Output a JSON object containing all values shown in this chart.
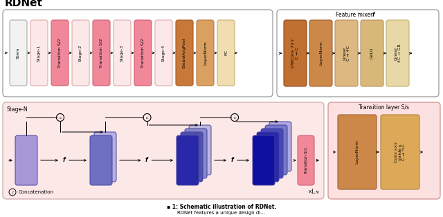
{
  "title": "RDNet",
  "bg_color": "#ffffff",
  "top_blocks": [
    {
      "label": "Stem",
      "color": "#f2f2f2",
      "border": "#aaaaaa"
    },
    {
      "label": "Stage-1",
      "color": "#fce8e8",
      "border": "#ddaaaa"
    },
    {
      "label": "Transition S/2",
      "color": "#f0889a",
      "border": "#d06070"
    },
    {
      "label": "Stage-2",
      "color": "#fce8e8",
      "border": "#ddaaaa"
    },
    {
      "label": "Transition S/2",
      "color": "#f0889a",
      "border": "#d06070"
    },
    {
      "label": "Stage-3",
      "color": "#fce8e8",
      "border": "#ddaaaa"
    },
    {
      "label": "Transition S/2",
      "color": "#f0889a",
      "border": "#d06070"
    },
    {
      "label": "Stage-4",
      "color": "#fce8e8",
      "border": "#ddaaaa"
    },
    {
      "label": "GlobalAvgPool",
      "color": "#c87838",
      "border": "#a05820"
    },
    {
      "label": "LayerNorm",
      "color": "#daa060",
      "border": "#b87840"
    },
    {
      "label": "FC",
      "color": "#f0ddb0",
      "border": "#c8b070"
    }
  ],
  "feature_mixer_blocks": [
    {
      "label": "DWConv 7×7\nC → C",
      "color": "#c07030",
      "border": "#904820"
    },
    {
      "label": "LayerNorm",
      "color": "#cc8848",
      "border": "#a06030"
    },
    {
      "label": "Linear\nC → 4C",
      "color": "#ddb880",
      "border": "#b89060"
    },
    {
      "label": "GeLU",
      "color": "#d8b878",
      "border": "#b89060"
    },
    {
      "label": "Linear\n4C → GR",
      "color": "#e8d8a8",
      "border": "#c0b070"
    }
  ],
  "transition_layer_blocks": [
    {
      "label": "LayerNorm",
      "color": "#cc8848",
      "border": "#a06030"
    },
    {
      "label": "Conv s×s\nstride s\nC → ½C",
      "color": "#dda858",
      "border": "#b08030"
    }
  ],
  "stage_n_label": "Stage-N",
  "feature_mixer_label": "Feature mixer ",
  "feature_mixer_f": "f",
  "transition_layer_label": "Transition layer S/s",
  "concat_label": "Concatenation",
  "times_label": "×L",
  "times_label_N": "N",
  "group_configs": [
    {
      "n": 1,
      "colors": [
        "#9898d8"
      ],
      "border": "#5050a0"
    },
    {
      "n": 2,
      "colors": [
        "#b0a8d8",
        "#6868c0"
      ],
      "border": "#4040a0"
    },
    {
      "n": 4,
      "colors": [
        "#c0b8e0",
        "#9090c8",
        "#5858b0",
        "#2828a8"
      ],
      "border": "#3030a0"
    },
    {
      "n": 5,
      "colors": [
        "#b8b0e0",
        "#7878c0",
        "#4848b0",
        "#2828a8",
        "#1818a0"
      ],
      "border": "#2020a0"
    }
  ],
  "transition_s1_color": "#f08898",
  "transition_s1_border": "#d06070"
}
